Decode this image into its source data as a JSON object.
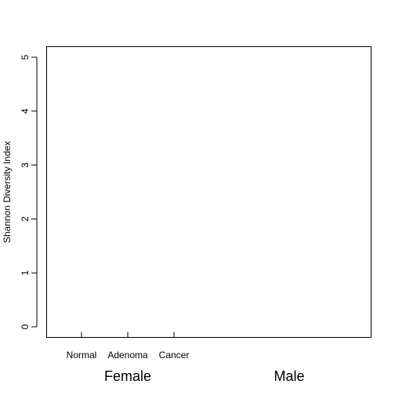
{
  "chart_data": {
    "type": "box",
    "title": "",
    "xlabel": "",
    "ylabel": "Shannon Diversity Index",
    "ylim": [
      0,
      5
    ],
    "yticks": [
      0,
      1,
      2,
      3,
      4,
      5
    ],
    "categories": [
      "Normal",
      "Adenoma",
      "Cancer"
    ],
    "groups": [
      {
        "label": "Female",
        "categories": [
          "Normal",
          "Adenoma",
          "Cancer"
        ]
      },
      {
        "label": "Male",
        "categories": []
      }
    ],
    "series": [],
    "grid": false,
    "legend": "none"
  }
}
